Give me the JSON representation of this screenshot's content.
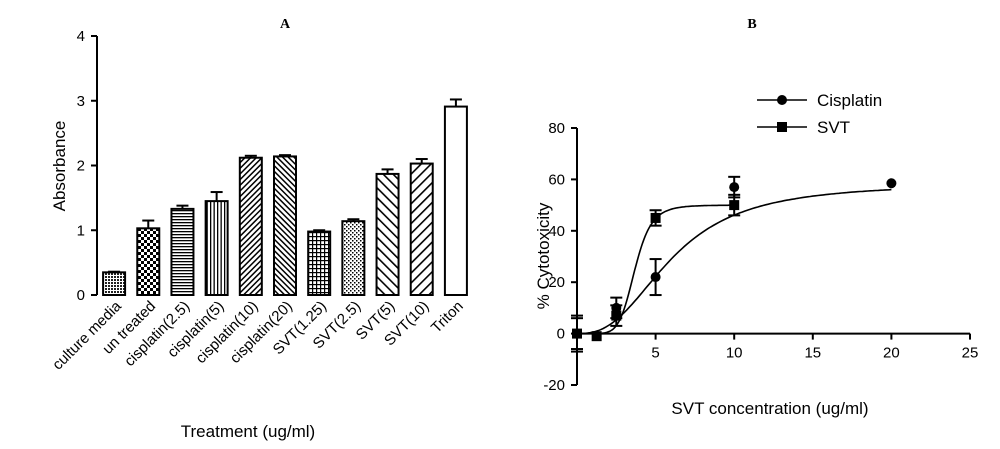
{
  "chart_data": [
    {
      "panel": "A",
      "type": "bar",
      "xlabel": "Treatment (ug/ml)",
      "ylabel": "Absorbance",
      "ylim": [
        0,
        4
      ],
      "yticks": [
        "0",
        "1",
        "2",
        "3",
        "4"
      ],
      "grid": false,
      "categories": [
        "culture media",
        "un treated",
        "cisplatin(2.5)",
        "cisplatin(5)",
        "cisplatin(10)",
        "cisplatin(20)",
        "SVT(1.25)",
        "SVT(2.5)",
        "SVT(5)",
        "SVT(10)",
        "Triton"
      ],
      "values": [
        0.35,
        1.03,
        1.33,
        1.45,
        2.12,
        2.14,
        0.98,
        1.14,
        1.87,
        2.03,
        2.91
      ],
      "errors": [
        0.01,
        0.12,
        0.05,
        0.14,
        0.03,
        0.02,
        0.02,
        0.03,
        0.07,
        0.07,
        0.11
      ],
      "patterns": [
        "dense-dots",
        "checker",
        "horizontal",
        "vertical",
        "diagonal-up-dense",
        "diagonal-down",
        "grid",
        "dots",
        "diagonal-down-wide",
        "diagonal-up-wide",
        "solid-white"
      ]
    },
    {
      "panel": "B",
      "type": "scatter",
      "xlabel": "SVT concentration (ug/ml)",
      "ylabel": "% Cytotoxicity",
      "xlim": [
        0,
        25
      ],
      "ylim": [
        -20,
        80
      ],
      "xticks": [
        "5",
        "10",
        "15",
        "20",
        "25"
      ],
      "yticks": [
        "-20",
        "0",
        "20",
        "40",
        "60",
        "80"
      ],
      "grid": false,
      "legend": "top-right",
      "series": [
        {
          "name": "Cisplatin",
          "marker": "circle",
          "x": [
            0,
            2.5,
            5,
            10,
            20
          ],
          "y": [
            0,
            10,
            22,
            57,
            58.5
          ],
          "errors": [
            7,
            4,
            7,
            4,
            0
          ],
          "fit": "sigmoid"
        },
        {
          "name": "SVT",
          "marker": "square",
          "x": [
            0,
            1.25,
            2.5,
            5,
            10
          ],
          "y": [
            0,
            -1,
            7,
            45,
            50
          ],
          "errors": [
            6,
            0,
            4,
            3,
            4
          ],
          "fit": "sigmoid"
        }
      ]
    }
  ]
}
